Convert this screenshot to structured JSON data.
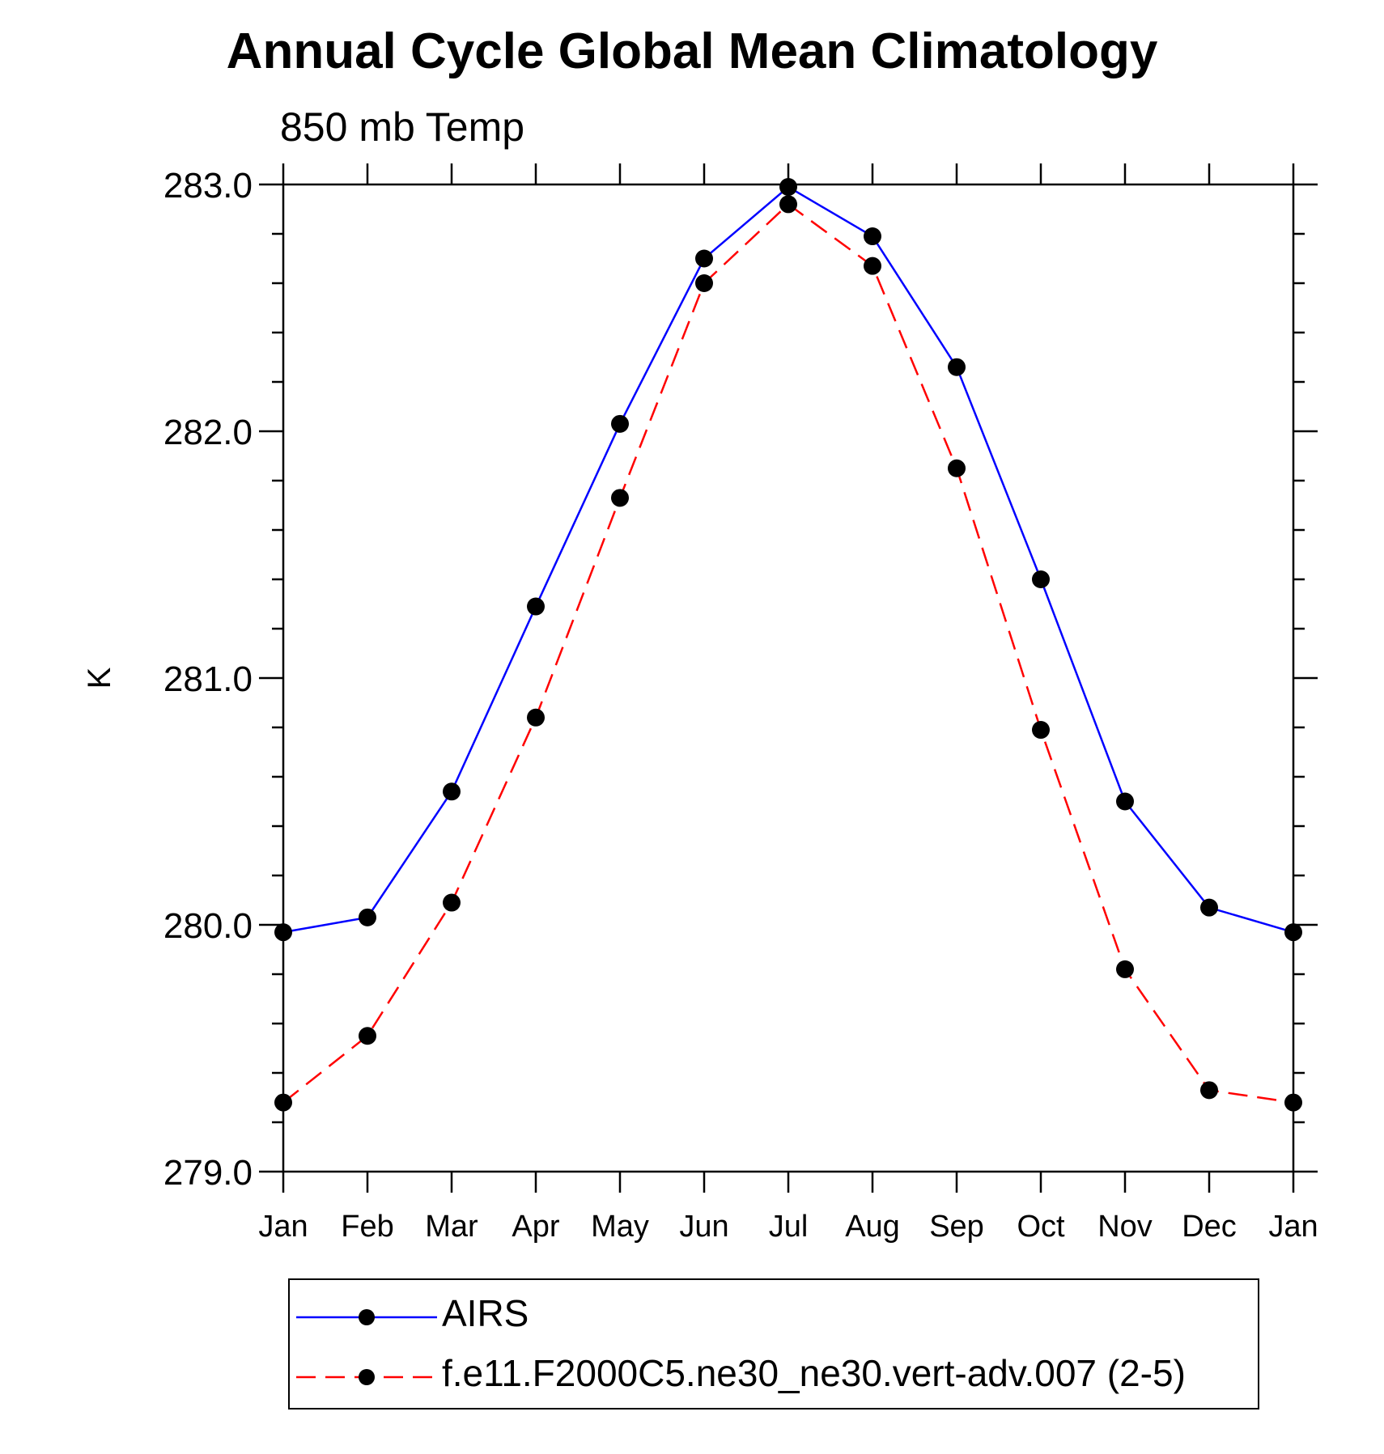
{
  "chart_data": {
    "type": "line",
    "title": "Annual Cycle Global Mean Climatology",
    "subtitle": "850 mb Temp",
    "ylabel": "K",
    "xlabel": "",
    "ylim": [
      279.0,
      283.0
    ],
    "yticks": [
      "279.0",
      "280.0",
      "281.0",
      "282.0",
      "283.0"
    ],
    "categories": [
      "Jan",
      "Feb",
      "Mar",
      "Apr",
      "May",
      "Jun",
      "Jul",
      "Aug",
      "Sep",
      "Oct",
      "Nov",
      "Dec",
      "Jan"
    ],
    "series": [
      {
        "name": "AIRS",
        "color": "#0000ff",
        "dash": "solid",
        "values": [
          279.97,
          280.03,
          280.54,
          281.29,
          282.03,
          282.7,
          282.99,
          282.79,
          282.26,
          281.4,
          280.5,
          280.07,
          279.97
        ]
      },
      {
        "name": "f.e11.F2000C5.ne30_ne30.vert-adv.007 (2-5)",
        "color": "#ff0000",
        "dash": "dashed",
        "values": [
          279.28,
          279.55,
          280.09,
          280.84,
          281.73,
          282.6,
          282.92,
          282.67,
          281.85,
          280.79,
          279.82,
          279.33,
          279.28
        ]
      }
    ],
    "legend_position": "bottom"
  }
}
